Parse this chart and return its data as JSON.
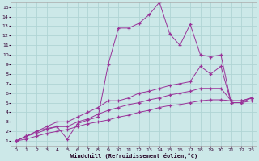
{
  "xlabel": "Windchill (Refroidissement éolien,°C)",
  "bg_color": "#cce8e8",
  "grid_color": "#b0d4d4",
  "line_color": "#993399",
  "xlim": [
    -0.5,
    23.5
  ],
  "ylim": [
    0.5,
    15.5
  ],
  "xticks": [
    0,
    1,
    2,
    3,
    4,
    5,
    6,
    7,
    8,
    9,
    10,
    11,
    12,
    13,
    14,
    15,
    16,
    17,
    18,
    19,
    20,
    21,
    22,
    23
  ],
  "yticks": [
    1,
    2,
    3,
    4,
    5,
    6,
    7,
    8,
    9,
    10,
    11,
    12,
    13,
    14,
    15
  ],
  "line1_x": [
    0,
    1,
    2,
    3,
    4,
    5,
    6,
    7,
    8,
    9,
    10,
    11,
    12,
    13,
    14,
    15,
    16,
    17,
    18,
    19,
    20,
    21,
    22,
    23
  ],
  "line1_y": [
    1.0,
    1.5,
    2.0,
    2.3,
    2.5,
    1.2,
    2.8,
    3.2,
    3.5,
    9.0,
    12.8,
    12.8,
    13.3,
    14.2,
    15.5,
    12.2,
    11.0,
    13.2,
    10.0,
    9.8,
    10.0,
    5.0,
    5.0,
    5.2
  ],
  "line2_x": [
    0,
    1,
    2,
    3,
    4,
    5,
    6,
    7,
    8,
    9,
    10,
    11,
    12,
    13,
    14,
    15,
    16,
    17,
    18,
    19,
    20,
    21,
    22,
    23
  ],
  "line2_y": [
    1.0,
    1.5,
    2.0,
    2.5,
    3.0,
    3.0,
    3.5,
    4.0,
    4.5,
    5.2,
    5.2,
    5.5,
    6.0,
    6.2,
    6.5,
    6.8,
    7.0,
    7.2,
    8.8,
    8.0,
    8.8,
    5.0,
    5.0,
    5.5
  ],
  "line3_x": [
    0,
    1,
    2,
    3,
    4,
    5,
    6,
    7,
    8,
    9,
    10,
    11,
    12,
    13,
    14,
    15,
    16,
    17,
    18,
    19,
    20,
    21,
    22,
    23
  ],
  "line3_y": [
    1.0,
    1.5,
    1.8,
    2.2,
    2.5,
    2.5,
    3.0,
    3.3,
    3.8,
    4.2,
    4.5,
    4.8,
    5.0,
    5.3,
    5.5,
    5.8,
    6.0,
    6.2,
    6.5,
    6.5,
    6.5,
    5.2,
    5.2,
    5.5
  ],
  "line4_x": [
    0,
    1,
    2,
    3,
    4,
    5,
    6,
    7,
    8,
    9,
    10,
    11,
    12,
    13,
    14,
    15,
    16,
    17,
    18,
    19,
    20,
    21,
    22,
    23
  ],
  "line4_y": [
    1.0,
    1.2,
    1.5,
    1.8,
    2.0,
    2.2,
    2.5,
    2.8,
    3.0,
    3.2,
    3.5,
    3.7,
    4.0,
    4.2,
    4.5,
    4.7,
    4.8,
    5.0,
    5.2,
    5.3,
    5.3,
    5.2,
    5.2,
    5.5
  ]
}
